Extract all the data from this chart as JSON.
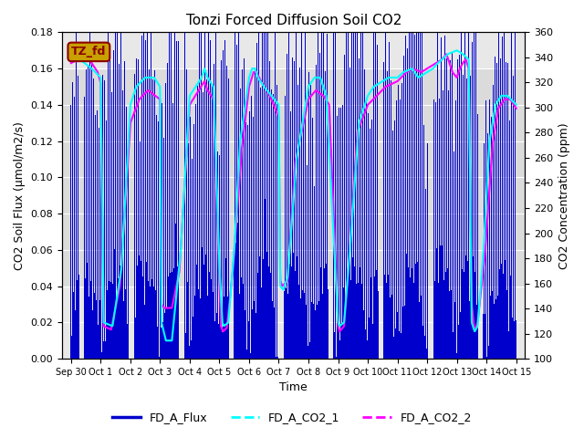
{
  "title": "Tonzi Forced Diffusion Soil CO2",
  "xlabel": "Time",
  "ylabel_left": "CO2 Soil Flux (μmol/m2/s)",
  "ylabel_right": "CO2 Concentration (ppm)",
  "ylim_left": [
    0.0,
    0.18
  ],
  "ylim_right": [
    100,
    360
  ],
  "site_label": "TZ_fd",
  "plot_bg_color": "#e8e8e8",
  "legend_entries": [
    "FD_A_Flux",
    "FD_A_CO2_1",
    "FD_A_CO2_2"
  ],
  "flux_color": "#0000cc",
  "co2_1_color": "#00ffff",
  "co2_2_color": "#ff00ff",
  "xtick_labels": [
    "Sep 30",
    "Oct 1",
    "Oct 2",
    "Oct 3",
    "Oct 4",
    "Oct 5",
    "Oct 6",
    "Oct 7",
    "Oct 8",
    "Oct 9",
    "Oct 10",
    "Oct 11",
    "Oct 12",
    "Oct 13",
    "Oct 14",
    "Oct 15"
  ],
  "band_lo": 0.04,
  "band_hi": 0.16,
  "band_color": "#d0d0d0",
  "co2_breakpoints_1": [
    [
      0.0,
      0.17
    ],
    [
      0.3,
      0.165
    ],
    [
      0.7,
      0.16
    ],
    [
      1.0,
      0.155
    ],
    [
      1.1,
      0.02
    ],
    [
      1.4,
      0.018
    ],
    [
      1.7,
      0.05
    ],
    [
      2.0,
      0.14
    ],
    [
      2.2,
      0.15
    ],
    [
      2.5,
      0.155
    ],
    [
      2.8,
      0.155
    ],
    [
      3.0,
      0.15
    ],
    [
      3.05,
      0.02
    ],
    [
      3.2,
      0.01
    ],
    [
      3.4,
      0.01
    ],
    [
      3.7,
      0.06
    ],
    [
      4.0,
      0.145
    ],
    [
      4.2,
      0.15
    ],
    [
      4.4,
      0.155
    ],
    [
      4.5,
      0.16
    ],
    [
      4.6,
      0.155
    ],
    [
      4.8,
      0.15
    ],
    [
      5.0,
      0.05
    ],
    [
      5.1,
      0.02
    ],
    [
      5.15,
      0.018
    ],
    [
      5.3,
      0.02
    ],
    [
      5.5,
      0.06
    ],
    [
      5.7,
      0.12
    ],
    [
      6.0,
      0.155
    ],
    [
      6.1,
      0.16
    ],
    [
      6.2,
      0.16
    ],
    [
      6.3,
      0.155
    ],
    [
      6.5,
      0.15
    ],
    [
      7.0,
      0.14
    ],
    [
      7.05,
      0.04
    ],
    [
      7.15,
      0.038
    ],
    [
      7.3,
      0.045
    ],
    [
      7.6,
      0.11
    ],
    [
      8.0,
      0.15
    ],
    [
      8.2,
      0.155
    ],
    [
      8.4,
      0.155
    ],
    [
      8.5,
      0.15
    ],
    [
      8.6,
      0.145
    ],
    [
      9.0,
      0.02
    ],
    [
      9.05,
      0.018
    ],
    [
      9.2,
      0.02
    ],
    [
      9.4,
      0.06
    ],
    [
      9.7,
      0.13
    ],
    [
      10.0,
      0.145
    ],
    [
      10.2,
      0.15
    ],
    [
      10.4,
      0.152
    ],
    [
      10.7,
      0.155
    ],
    [
      11.0,
      0.155
    ],
    [
      11.2,
      0.158
    ],
    [
      11.5,
      0.16
    ],
    [
      11.7,
      0.155
    ],
    [
      12.0,
      0.158
    ],
    [
      12.2,
      0.16
    ],
    [
      12.3,
      0.162
    ],
    [
      12.5,
      0.165
    ],
    [
      12.7,
      0.168
    ],
    [
      13.0,
      0.17
    ],
    [
      13.2,
      0.168
    ],
    [
      13.4,
      0.165
    ],
    [
      13.5,
      0.02
    ],
    [
      13.6,
      0.015
    ],
    [
      13.7,
      0.018
    ],
    [
      13.9,
      0.06
    ],
    [
      14.1,
      0.12
    ],
    [
      14.3,
      0.14
    ],
    [
      14.5,
      0.145
    ],
    [
      14.7,
      0.145
    ],
    [
      15.0,
      0.14
    ]
  ],
  "co2_breakpoints_2": [
    [
      0.0,
      0.163
    ],
    [
      0.25,
      0.165
    ],
    [
      0.5,
      0.168
    ],
    [
      0.7,
      0.163
    ],
    [
      0.9,
      0.158
    ],
    [
      1.0,
      0.152
    ],
    [
      1.1,
      0.018
    ],
    [
      1.35,
      0.016
    ],
    [
      1.65,
      0.04
    ],
    [
      2.0,
      0.13
    ],
    [
      2.3,
      0.143
    ],
    [
      2.6,
      0.148
    ],
    [
      3.0,
      0.143
    ],
    [
      3.05,
      0.03
    ],
    [
      3.15,
      0.028
    ],
    [
      3.4,
      0.028
    ],
    [
      3.65,
      0.048
    ],
    [
      4.0,
      0.14
    ],
    [
      4.3,
      0.148
    ],
    [
      4.5,
      0.153
    ],
    [
      4.6,
      0.148
    ],
    [
      4.8,
      0.143
    ],
    [
      5.0,
      0.042
    ],
    [
      5.05,
      0.018
    ],
    [
      5.12,
      0.015
    ],
    [
      5.25,
      0.017
    ],
    [
      5.45,
      0.048
    ],
    [
      5.75,
      0.115
    ],
    [
      6.0,
      0.15
    ],
    [
      6.15,
      0.158
    ],
    [
      6.25,
      0.158
    ],
    [
      6.4,
      0.153
    ],
    [
      6.7,
      0.145
    ],
    [
      7.0,
      0.133
    ],
    [
      7.05,
      0.043
    ],
    [
      7.12,
      0.04
    ],
    [
      7.3,
      0.043
    ],
    [
      7.55,
      0.108
    ],
    [
      8.0,
      0.143
    ],
    [
      8.25,
      0.148
    ],
    [
      8.5,
      0.145
    ],
    [
      8.7,
      0.14
    ],
    [
      9.0,
      0.018
    ],
    [
      9.05,
      0.015
    ],
    [
      9.2,
      0.018
    ],
    [
      9.35,
      0.05
    ],
    [
      9.65,
      0.125
    ],
    [
      10.0,
      0.14
    ],
    [
      10.3,
      0.145
    ],
    [
      10.6,
      0.15
    ],
    [
      11.0,
      0.153
    ],
    [
      11.3,
      0.158
    ],
    [
      11.5,
      0.16
    ],
    [
      11.8,
      0.158
    ],
    [
      12.0,
      0.16
    ],
    [
      12.3,
      0.163
    ],
    [
      12.5,
      0.165
    ],
    [
      12.65,
      0.168
    ],
    [
      12.85,
      0.158
    ],
    [
      13.0,
      0.155
    ],
    [
      13.1,
      0.16
    ],
    [
      13.2,
      0.163
    ],
    [
      13.3,
      0.165
    ],
    [
      13.4,
      0.16
    ],
    [
      13.5,
      0.03
    ],
    [
      13.6,
      0.015
    ],
    [
      13.7,
      0.02
    ],
    [
      13.95,
      0.058
    ],
    [
      14.2,
      0.118
    ],
    [
      14.4,
      0.138
    ],
    [
      14.6,
      0.143
    ],
    [
      14.8,
      0.143
    ],
    [
      15.0,
      0.138
    ]
  ]
}
